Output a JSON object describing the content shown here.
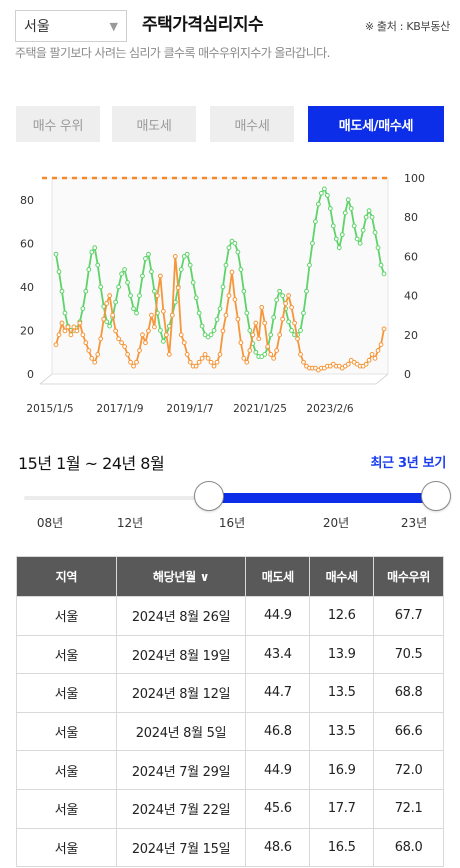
{
  "header": {
    "region_select": "서울",
    "title": "주택가격심리지수",
    "source": "※ 출처 : KB부동산",
    "description": "주택을 팔기보다 사려는 심리가 클수록 매수우위지수가 올라갑니다."
  },
  "tabs": [
    {
      "label": "매수 우위",
      "active": false
    },
    {
      "label": "매도세",
      "active": false
    },
    {
      "label": "매수세",
      "active": false
    },
    {
      "label": "매도세/매수세",
      "active": true
    }
  ],
  "chart_data": {
    "type": "line",
    "x_tick_labels": [
      "2015/1/5",
      "2017/1/9",
      "2019/1/7",
      "2021/1/25",
      "2023/2/6"
    ],
    "y_left_ticks": [
      0,
      20,
      40,
      60,
      80
    ],
    "y_right_ticks": [
      0,
      20,
      40,
      60,
      80,
      100
    ],
    "ylim_left": [
      0,
      90
    ],
    "ylim_right": [
      0,
      100
    ],
    "reference_line": {
      "value": 100,
      "axis": "right",
      "color": "#f58a2a",
      "style": "dashed"
    },
    "colors": {
      "green_series": "#5ed36a",
      "orange_series": "#f5963a"
    },
    "grid": false,
    "series": [
      {
        "axis": "left",
        "color": "#5ed36a",
        "values": [
          55,
          47,
          38,
          28,
          22,
          20,
          20,
          21,
          24,
          30,
          38,
          48,
          56,
          58,
          50,
          40,
          31,
          24,
          22,
          26,
          33,
          40,
          46,
          48,
          42,
          36,
          30,
          28,
          36,
          45,
          53,
          55,
          47,
          38,
          28,
          20,
          15,
          18,
          22,
          27,
          33,
          40,
          48,
          54,
          55,
          50,
          42,
          35,
          28,
          22,
          18,
          17,
          18,
          20,
          25,
          30,
          40,
          50,
          58,
          61,
          60,
          56,
          48,
          38,
          28,
          20,
          14,
          10,
          8,
          8,
          9,
          12,
          18,
          26,
          34,
          38,
          36,
          30,
          24,
          20,
          18,
          18,
          20,
          28,
          38,
          50,
          60,
          70,
          78,
          83,
          85,
          82,
          76,
          68,
          62,
          58,
          64,
          74,
          80,
          76,
          68,
          62,
          60,
          66,
          72,
          75,
          72,
          65,
          58,
          50,
          46
        ]
      },
      {
        "axis": "right",
        "color": "#f5963a",
        "values": [
          15,
          20,
          26,
          22,
          24,
          20,
          24,
          22,
          26,
          20,
          16,
          12,
          8,
          6,
          10,
          18,
          28,
          36,
          40,
          30,
          22,
          18,
          16,
          14,
          10,
          6,
          4,
          6,
          12,
          20,
          16,
          22,
          30,
          24,
          40,
          50,
          32,
          20,
          10,
          30,
          60,
          44,
          20,
          16,
          10,
          6,
          4,
          4,
          6,
          8,
          10,
          8,
          6,
          4,
          6,
          10,
          22,
          30,
          40,
          52,
          38,
          28,
          16,
          8,
          6,
          12,
          20,
          26,
          18,
          34,
          26,
          14,
          10,
          8,
          12,
          20,
          28,
          36,
          40,
          34,
          26,
          18,
          10,
          6,
          4,
          3,
          3,
          3,
          2,
          3,
          3,
          4,
          4,
          5,
          4,
          4,
          3,
          4,
          5,
          7,
          6,
          5,
          4,
          4,
          5,
          7,
          10,
          8,
          12,
          15,
          23
        ]
      }
    ]
  },
  "period": {
    "label": "15년 1월 ~ 24년 8월",
    "recent_link": "최근 3년 보기",
    "ticks": [
      "08년",
      "12년",
      "16년",
      "20년",
      "23년"
    ],
    "range_start_fraction": 0.45,
    "range_end_fraction": 1.0
  },
  "table": {
    "headers": [
      "지역",
      "해당년월 ∨",
      "매도세",
      "매수세",
      "매수우위"
    ],
    "rows": [
      [
        "서울",
        "2024년 8월 26일",
        "44.9",
        "12.6",
        "67.7"
      ],
      [
        "서울",
        "2024년 8월 19일",
        "43.4",
        "13.9",
        "70.5"
      ],
      [
        "서울",
        "2024년 8월 12일",
        "44.7",
        "13.5",
        "68.8"
      ],
      [
        "서울",
        "2024년 8월 5일",
        "46.8",
        "13.5",
        "66.6"
      ],
      [
        "서울",
        "2024년 7월 29일",
        "44.9",
        "16.9",
        "72.0"
      ],
      [
        "서울",
        "2024년 7월 22일",
        "45.6",
        "17.7",
        "72.1"
      ],
      [
        "서울",
        "2024년 7월 15일",
        "48.6",
        "16.5",
        "68.0"
      ]
    ]
  }
}
